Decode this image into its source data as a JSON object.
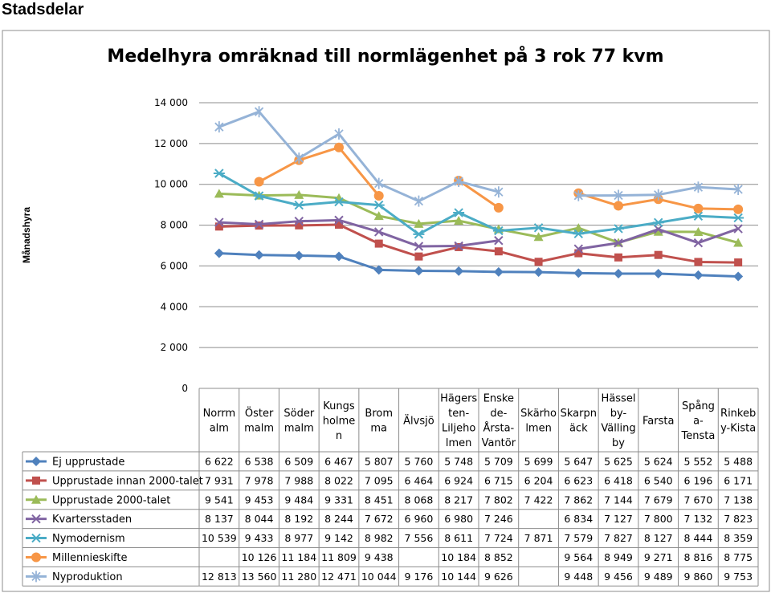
{
  "page": {
    "title": "Stadsdelar"
  },
  "chart_data": {
    "type": "line",
    "title": "Medelhyra omräknad till normlägenhet på 3 rok 77 kvm",
    "ylabel": "Månadshyra",
    "xlabel": "",
    "ylim": [
      0,
      14000
    ],
    "yticks": [
      0,
      2000,
      4000,
      6000,
      8000,
      10000,
      12000,
      14000
    ],
    "ytick_labels": [
      "0",
      "2 000",
      "4 000",
      "6 000",
      "8 000",
      "10 000",
      "12 000",
      "14 000"
    ],
    "grid": "horizontal",
    "legend": "data-table-below",
    "categories": [
      "Norrmalm",
      "Östermalm",
      "Södermalm",
      "Kungsholmen",
      "Bromma",
      "Älvsjö",
      "Hägersten-Liljeholmen",
      "Enskede-Årsta-Vantör",
      "Skärholmen",
      "Skarpnäck",
      "Hässelby-Vällingby",
      "Farsta",
      "Spånga-Tensta",
      "Rinkeby-Kista"
    ],
    "category_label_lines": [
      [
        "Norrm",
        "alm"
      ],
      [
        "Öster",
        "malm"
      ],
      [
        "Söder",
        "malm"
      ],
      [
        "Kungs",
        "holme",
        "n"
      ],
      [
        "Brom",
        "ma"
      ],
      [
        "Älvsjö"
      ],
      [
        "Hägers",
        "ten-",
        "Liljeho",
        "lmen"
      ],
      [
        "Enske",
        "de-",
        "Årsta-",
        "Vantör"
      ],
      [
        "Skärho",
        "lmen"
      ],
      [
        "Skarpn",
        "äck"
      ],
      [
        "Hässel",
        "by-",
        "Välling",
        "by"
      ],
      [
        "Farsta"
      ],
      [
        "Spång",
        "a-",
        "Tensta"
      ],
      [
        "Rinkeb",
        "y-Kista"
      ]
    ],
    "series": [
      {
        "name": "Ej upprustade",
        "color": "#4F81BD",
        "marker": "diamond",
        "values": [
          6622,
          6538,
          6509,
          6467,
          5807,
          5760,
          5748,
          5709,
          5699,
          5647,
          5625,
          5624,
          5552,
          5488
        ],
        "labels": [
          "6 622",
          "6 538",
          "6 509",
          "6 467",
          "5 807",
          "5 760",
          "5 748",
          "5 709",
          "5 699",
          "5 647",
          "5 625",
          "5 624",
          "5 552",
          "5 488"
        ]
      },
      {
        "name": "Upprustade innan 2000-talet",
        "color": "#C0504D",
        "marker": "square",
        "values": [
          7931,
          7978,
          7988,
          8022,
          7095,
          6464,
          6924,
          6715,
          6204,
          6623,
          6418,
          6540,
          6196,
          6171
        ],
        "labels": [
          "7 931",
          "7 978",
          "7 988",
          "8 022",
          "7 095",
          "6 464",
          "6 924",
          "6 715",
          "6 204",
          "6 623",
          "6 418",
          "6 540",
          "6 196",
          "6 171"
        ]
      },
      {
        "name": "Upprustade 2000-talet",
        "color": "#9BBB59",
        "marker": "triangle",
        "values": [
          9541,
          9453,
          9484,
          9331,
          8451,
          8068,
          8217,
          7802,
          7422,
          7862,
          7144,
          7679,
          7670,
          7138
        ],
        "labels": [
          "9 541",
          "9 453",
          "9 484",
          "9 331",
          "8 451",
          "8 068",
          "8 217",
          "7 802",
          "7 422",
          "7 862",
          "7 144",
          "7 679",
          "7 670",
          "7 138"
        ]
      },
      {
        "name": "Kvartersstaden",
        "color": "#8064A2",
        "marker": "x",
        "values": [
          8137,
          8044,
          8192,
          8244,
          7672,
          6960,
          6980,
          7246,
          null,
          6834,
          7127,
          7800,
          7132,
          7823
        ],
        "labels": [
          "8 137",
          "8 044",
          "8 192",
          "8 244",
          "7 672",
          "6 960",
          "6 980",
          "7 246",
          "",
          "6 834",
          "7 127",
          "7 800",
          "7 132",
          "7 823"
        ]
      },
      {
        "name": "Nymodernism",
        "color": "#4BACC6",
        "marker": "star",
        "values": [
          10539,
          9433,
          8977,
          9142,
          8982,
          7556,
          8611,
          7724,
          7871,
          7579,
          7827,
          8127,
          8444,
          8359
        ],
        "labels": [
          "10 539",
          "9 433",
          "8 977",
          "9 142",
          "8 982",
          "7 556",
          "8 611",
          "7 724",
          "7 871",
          "7 579",
          "7 827",
          "8 127",
          "8 444",
          "8 359"
        ]
      },
      {
        "name": "Millennieskifte",
        "color": "#F79646",
        "marker": "circle",
        "values": [
          null,
          10126,
          11184,
          11809,
          9438,
          null,
          10184,
          8852,
          null,
          9564,
          8949,
          9271,
          8816,
          8775
        ],
        "labels": [
          "",
          "10 126",
          "11 184",
          "11 809",
          "9 438",
          "",
          "10 184",
          "8 852",
          "",
          "9 564",
          "8 949",
          "9 271",
          "8 816",
          "8 775"
        ]
      },
      {
        "name": "Nyproduktion",
        "color": "#95B3D7",
        "marker": "plus",
        "values": [
          12813,
          13560,
          11280,
          12471,
          10044,
          9176,
          10144,
          9626,
          null,
          9448,
          9456,
          9489,
          9860,
          9753
        ],
        "labels": [
          "12 813",
          "13 560",
          "11 280",
          "12 471",
          "10 044",
          "9 176",
          "10 144",
          "9 626",
          "",
          "9 448",
          "9 456",
          "9 489",
          "9 860",
          "9 753"
        ]
      }
    ]
  }
}
